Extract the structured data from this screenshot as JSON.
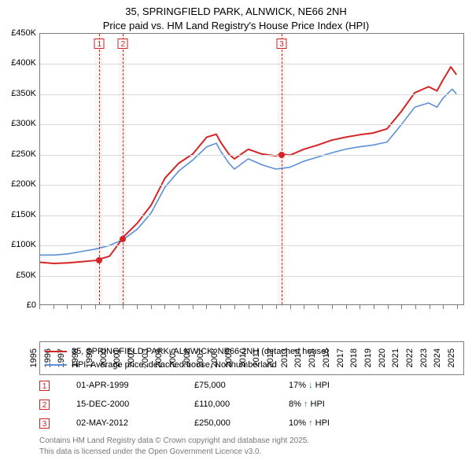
{
  "title_line1": "35, SPRINGFIELD PARK, ALNWICK, NE66 2NH",
  "title_line2": "Price paid vs. HM Land Registry's House Price Index (HPI)",
  "chart": {
    "type": "line",
    "background_color": "#ffffff",
    "grid_color": "#d9d9d9",
    "border_color": "#7a7a7a",
    "xlim": [
      1995,
      2025.5
    ],
    "ylim": [
      0,
      450000
    ],
    "ytick_step": 50000,
    "y_ticks": [
      {
        "v": 0,
        "label": "£0"
      },
      {
        "v": 50000,
        "label": "£50K"
      },
      {
        "v": 100000,
        "label": "£100K"
      },
      {
        "v": 150000,
        "label": "£150K"
      },
      {
        "v": 200000,
        "label": "£200K"
      },
      {
        "v": 250000,
        "label": "£250K"
      },
      {
        "v": 300000,
        "label": "£300K"
      },
      {
        "v": 350000,
        "label": "£350K"
      },
      {
        "v": 400000,
        "label": "£400K"
      },
      {
        "v": 450000,
        "label": "£450K"
      }
    ],
    "x_ticks": [
      1995,
      1996,
      1997,
      1998,
      1999,
      2000,
      2001,
      2002,
      2003,
      2004,
      2005,
      2006,
      2007,
      2008,
      2009,
      2010,
      2011,
      2012,
      2013,
      2014,
      2015,
      2016,
      2017,
      2018,
      2019,
      2020,
      2021,
      2022,
      2023,
      2024,
      2025
    ],
    "series": [
      {
        "name": "property",
        "label": "35, SPRINGFIELD PARK, ALNWICK, NE66 2NH (detached house)",
        "color": "#d52426",
        "line_width": 2,
        "data": [
          [
            1995,
            70000
          ],
          [
            1996,
            68000
          ],
          [
            1997,
            69000
          ],
          [
            1998,
            71000
          ],
          [
            1999,
            73000
          ],
          [
            1999.25,
            75000
          ],
          [
            2000,
            80000
          ],
          [
            2000.95,
            110000
          ],
          [
            2001,
            112000
          ],
          [
            2002,
            135000
          ],
          [
            2003,
            165000
          ],
          [
            2004,
            210000
          ],
          [
            2005,
            235000
          ],
          [
            2006,
            250000
          ],
          [
            2007,
            278000
          ],
          [
            2007.7,
            283000
          ],
          [
            2008,
            270000
          ],
          [
            2008.6,
            250000
          ],
          [
            2009,
            242000
          ],
          [
            2010,
            258000
          ],
          [
            2011,
            250000
          ],
          [
            2012,
            247000
          ],
          [
            2012.34,
            250000
          ],
          [
            2013,
            248000
          ],
          [
            2014,
            258000
          ],
          [
            2015,
            265000
          ],
          [
            2016,
            273000
          ],
          [
            2017,
            278000
          ],
          [
            2018,
            282000
          ],
          [
            2019,
            285000
          ],
          [
            2020,
            292000
          ],
          [
            2021,
            320000
          ],
          [
            2022,
            352000
          ],
          [
            2023,
            362000
          ],
          [
            2023.6,
            355000
          ],
          [
            2024,
            372000
          ],
          [
            2024.6,
            395000
          ],
          [
            2025,
            382000
          ]
        ]
      },
      {
        "name": "hpi",
        "label": "HPI: Average price, detached house, Northumberland",
        "color": "#5b8fd6",
        "line_width": 1.6,
        "data": [
          [
            1995,
            82000
          ],
          [
            1996,
            82000
          ],
          [
            1997,
            84000
          ],
          [
            1998,
            88000
          ],
          [
            1999,
            92000
          ],
          [
            2000,
            98000
          ],
          [
            2001,
            108000
          ],
          [
            2002,
            125000
          ],
          [
            2003,
            152000
          ],
          [
            2004,
            195000
          ],
          [
            2005,
            222000
          ],
          [
            2006,
            240000
          ],
          [
            2007,
            262000
          ],
          [
            2007.7,
            268000
          ],
          [
            2008,
            255000
          ],
          [
            2008.6,
            235000
          ],
          [
            2009,
            225000
          ],
          [
            2010,
            242000
          ],
          [
            2011,
            232000
          ],
          [
            2012,
            225000
          ],
          [
            2013,
            228000
          ],
          [
            2014,
            238000
          ],
          [
            2015,
            245000
          ],
          [
            2016,
            252000
          ],
          [
            2017,
            258000
          ],
          [
            2018,
            262000
          ],
          [
            2019,
            265000
          ],
          [
            2020,
            270000
          ],
          [
            2021,
            298000
          ],
          [
            2022,
            328000
          ],
          [
            2023,
            335000
          ],
          [
            2023.6,
            328000
          ],
          [
            2024,
            342000
          ],
          [
            2024.7,
            358000
          ],
          [
            2025,
            350000
          ]
        ]
      }
    ],
    "sale_markers": [
      {
        "idx": "1",
        "x": 1999.25,
        "y": 75000
      },
      {
        "idx": "2",
        "x": 2000.95,
        "y": 110000
      },
      {
        "idx": "3",
        "x": 2012.34,
        "y": 250000
      }
    ],
    "marker_box_color": "#cc2222",
    "marker_band_color": "rgba(220,60,60,0.06)"
  },
  "legend": {
    "rows": [
      {
        "color": "#d52426",
        "label": "35, SPRINGFIELD PARK, ALNWICK, NE66 2NH (detached house)"
      },
      {
        "color": "#5b8fd6",
        "label": "HPI: Average price, detached house, Northumberland"
      }
    ]
  },
  "sales": [
    {
      "idx": "1",
      "date": "01-APR-1999",
      "price": "£75,000",
      "pct": "17%",
      "dir": "down",
      "vs": "HPI"
    },
    {
      "idx": "2",
      "date": "15-DEC-2000",
      "price": "£110,000",
      "pct": "8%",
      "dir": "up",
      "vs": "HPI"
    },
    {
      "idx": "3",
      "date": "02-MAY-2012",
      "price": "£250,000",
      "pct": "10%",
      "dir": "up",
      "vs": "HPI"
    }
  ],
  "footer_line1": "Contains HM Land Registry data © Crown copyright and database right 2025.",
  "footer_line2": "This data is licensed under the Open Government Licence v3.0."
}
